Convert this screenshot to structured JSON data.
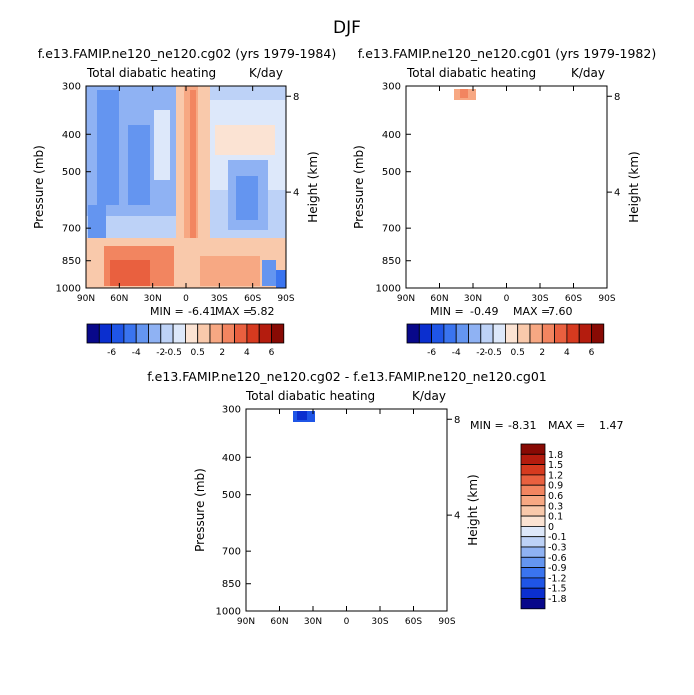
{
  "page_title": "DJF",
  "colors": {
    "neg": [
      "#08088a",
      "#0b2fcf",
      "#1f55e6",
      "#3a74ef",
      "#6495f0",
      "#8fb2f3",
      "#bdd2f7",
      "#dde8fa"
    ],
    "pos": [
      "#fbe3d3",
      "#f9c9ab",
      "#f7a883",
      "#f28560",
      "#e9603f",
      "#d63a1f",
      "#b41c0e",
      "#880a04"
    ],
    "line": "#000000",
    "background": "#ffffff"
  },
  "chart_data": [
    {
      "type": "heatmap",
      "title": "f.e13.FAMIP.ne120_ne120.cg02 (yrs 1979-1984)",
      "variable": "Total diabatic heating",
      "units": "K/day",
      "ylabel": "Pressure (mb)",
      "ylabel2": "Height (km)",
      "xticks": [
        "90N",
        "60N",
        "30N",
        "0",
        "30S",
        "60S",
        "90S"
      ],
      "yticks": [
        "300",
        "400",
        "500",
        "700",
        "850",
        "1000"
      ],
      "yticks2": [
        "8",
        "4"
      ],
      "xlim": [
        90,
        -90
      ],
      "ylim": [
        1000,
        300
      ],
      "min_label": "MIN =",
      "min_value": "-6.41",
      "max_label": "MAX =",
      "max_value": "5.82",
      "colorbar_labels": [
        "-6",
        "-4",
        "-2",
        "-0.5",
        "0.5",
        "2",
        "4",
        "6"
      ]
    },
    {
      "type": "heatmap",
      "title": "f.e13.FAMIP.ne120_ne120.cg01 (yrs 1979-1982)",
      "variable": "Total diabatic heating",
      "units": "K/day",
      "ylabel": "Pressure (mb)",
      "ylabel2": "Height (km)",
      "xticks": [
        "90N",
        "60N",
        "30N",
        "0",
        "30S",
        "60S",
        "90S"
      ],
      "yticks": [
        "300",
        "400",
        "500",
        "700",
        "850",
        "1000"
      ],
      "yticks2": [
        "8",
        "4"
      ],
      "xlim": [
        90,
        -90
      ],
      "ylim": [
        1000,
        300
      ],
      "min_label": "MIN =",
      "min_value": "-0.49",
      "max_label": "MAX =",
      "max_value": "7.60",
      "colorbar_labels": [
        "-6",
        "-4",
        "-2",
        "-0.5",
        "0.5",
        "2",
        "4",
        "6"
      ]
    },
    {
      "type": "heatmap",
      "title": "f.e13.FAMIP.ne120_ne120.cg02 - f.e13.FAMIP.ne120_ne120.cg01",
      "variable": "Total diabatic heating",
      "units": "K/day",
      "ylabel": "Pressure (mb)",
      "ylabel2": "Height (km)",
      "xticks": [
        "90N",
        "60N",
        "30N",
        "0",
        "30S",
        "60S",
        "90S"
      ],
      "yticks": [
        "300",
        "400",
        "500",
        "700",
        "850",
        "1000"
      ],
      "yticks2": [
        "8",
        "4"
      ],
      "xlim": [
        90,
        -90
      ],
      "ylim": [
        1000,
        300
      ],
      "min_label": "MIN =",
      "min_value": "-8.31",
      "max_label": "MAX =",
      "max_value": "1.47",
      "colorbar_labels": [
        "1.8",
        "1.5",
        "1.2",
        "0.9",
        "0.6",
        "0.3",
        "0.1",
        "0",
        "-0.1",
        "-0.3",
        "-0.6",
        "-0.9",
        "-1.2",
        "-1.5",
        "-1.8"
      ]
    }
  ]
}
